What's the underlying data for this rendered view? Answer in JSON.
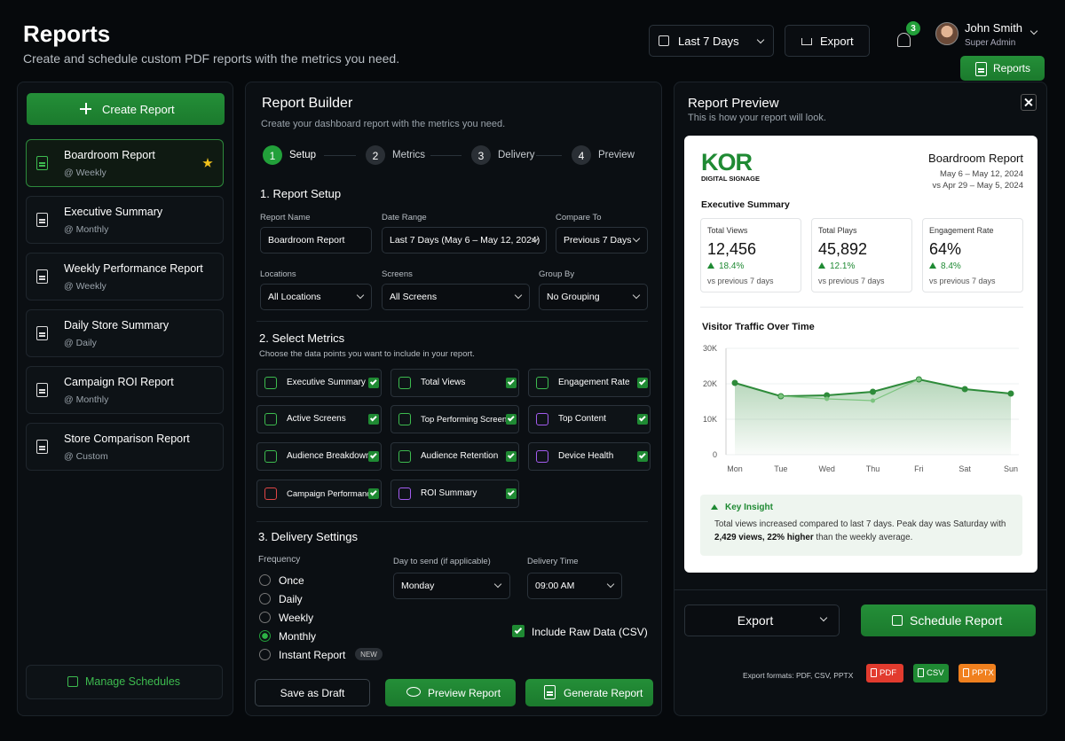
{
  "header": {
    "title": "Reports",
    "subtitle": "Create and schedule custom PDF reports with the metrics you need.",
    "date_range": "Last 7 Days",
    "export": "Export",
    "notifications": "3",
    "user_name": "John Smith",
    "user_role": "Super Admin",
    "reports_button": "Reports"
  },
  "sidebar": {
    "create": "Create Report",
    "active_index": 0,
    "reports": [
      {
        "name": "Boardroom Report",
        "schedule": "@ Weekly"
      },
      {
        "name": "Executive Summary",
        "schedule": "@ Monthly"
      },
      {
        "name": "Weekly Performance Report",
        "schedule": "@ Weekly"
      },
      {
        "name": "Daily Store Summary",
        "schedule": "@ Daily"
      },
      {
        "name": "Campaign ROI Report",
        "schedule": "@ Monthly"
      },
      {
        "name": "Store Comparison Report",
        "schedule": "@ Custom"
      }
    ],
    "manage": "Manage Schedules"
  },
  "builder": {
    "title": "Report Builder",
    "subtitle": "Create your dashboard report with the metrics you need.",
    "active_step": 0,
    "steps": [
      {
        "number": "1",
        "label": "Setup"
      },
      {
        "number": "2",
        "label": "Metrics"
      },
      {
        "number": "3",
        "label": "Delivery"
      },
      {
        "number": "4",
        "label": "Preview"
      }
    ],
    "setup": {
      "title": "1. Report Setup",
      "fields": [
        {
          "label": "Report Name",
          "value": "Boardroom Report"
        },
        {
          "label": "Date Range",
          "value": "Last 7 Days (May 6 – May 12, 2024)"
        },
        {
          "label": "Compare To",
          "value": "Previous 7 Days"
        },
        {
          "label": "Locations",
          "value": "All Locations"
        },
        {
          "label": "Screens",
          "value": "All Screens"
        },
        {
          "label": "Group By",
          "value": "No Grouping"
        }
      ]
    },
    "metrics": {
      "title": "2. Select Metrics",
      "subtitle": "Choose the data points you want to include in your report.",
      "items": [
        "Executive Summary",
        "Total Views",
        "Engagement Rate",
        "Active Screens",
        "Top Performing Screens",
        "Top Content",
        "Audience Breakdown",
        "Audience Retention",
        "Device Health",
        "Campaign Performance",
        "ROI Summary"
      ]
    },
    "delivery": {
      "title": "3. Delivery Settings",
      "frequency_label": "Frequency",
      "options": [
        "Once",
        "Daily",
        "Weekly",
        "Monthly",
        "Instant Report"
      ],
      "selected_index": 3,
      "new_badge": "NEW",
      "day_label": "Day to send (if applicable)",
      "day_value": "Monday",
      "time_label": "Delivery Time",
      "time_value": "09:00 AM",
      "raw_data": "Include Raw Data (CSV)"
    },
    "buttons": {
      "draft": "Save as Draft",
      "preview": "Preview Report",
      "generate": "Generate Report"
    }
  },
  "preview": {
    "title": "Report Preview",
    "subtitle": "This is how your report will look.",
    "logo": "KOR",
    "logo_sub": "DIGITAL SIGNAGE",
    "report_title": "Boardroom Report",
    "date_range": "May 6 – May 12, 2024",
    "compare": "vs Apr 29 – May 5, 2024",
    "summary_title": "Executive Summary",
    "kpis": [
      {
        "label": "Total Views",
        "value": "12,456",
        "change": "18.4%",
        "note": "vs previous 7 days"
      },
      {
        "label": "Total Plays",
        "value": "45,892",
        "change": "12.1%",
        "note": "vs previous 7 days"
      },
      {
        "label": "Engagement Rate",
        "value": "64%",
        "change": "8.4%",
        "note": "vs previous 7 days"
      }
    ],
    "insight": {
      "title": "Key Insight",
      "text": [
        "Total views increased compared to last 7 days. Peak day was Saturday with ",
        "2,429 views, 22% higher",
        " than the weekly average."
      ]
    },
    "export": "Export",
    "schedule": "Schedule Report",
    "formats_label": "Export formats: PDF, CSV, PPTX",
    "formats": [
      "PDF",
      "CSV",
      "PPTX"
    ]
  },
  "chart_data": {
    "type": "line",
    "title": "Visitor Traffic Over Time",
    "categories": [
      "Mon",
      "Tue",
      "Wed",
      "Thu",
      "Fri",
      "Sat",
      "Sun"
    ],
    "series": [
      {
        "color": "#2e8b3a",
        "values": [
          20250,
          16500,
          16750,
          17750,
          21250,
          18500,
          17250
        ]
      },
      {
        "color": "#7cc47f",
        "values": [
          null,
          16500,
          15750,
          15250,
          21250,
          null,
          null
        ]
      }
    ],
    "ylim": [
      0,
      30000
    ],
    "yticks": [
      {
        "value": 0,
        "label": "0"
      },
      {
        "value": 10000,
        "label": "10K"
      },
      {
        "value": 20000,
        "label": "20K"
      },
      {
        "value": 30000,
        "label": "30K"
      }
    ],
    "grid": true
  }
}
